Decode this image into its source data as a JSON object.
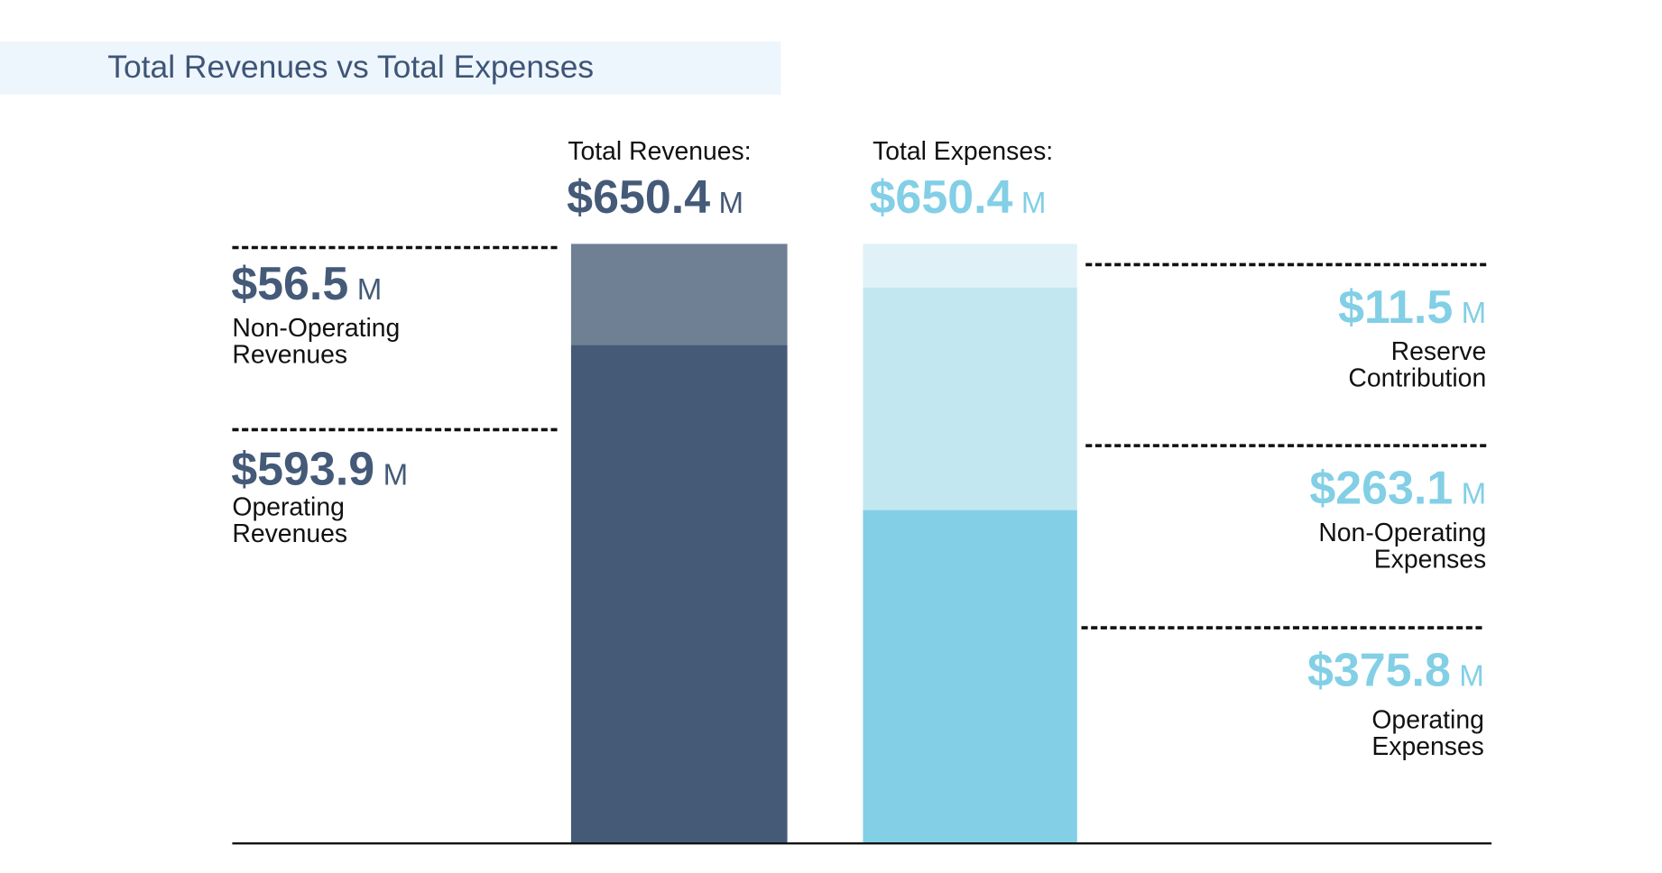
{
  "title": "Total Revenues vs Total Expenses",
  "chart_data": {
    "type": "bar",
    "stacked": true,
    "categories": [
      "Total Revenues",
      "Total Expenses"
    ],
    "unit": "M",
    "colors": {
      "operating_revenues": "#455a77",
      "non_operating_revenues": "#6f8095",
      "operating_expenses": "#83cfe6",
      "non_operating_expenses": "#c2e7f1",
      "reserve_contribution": "#e0f2f8",
      "revenue_text": "#445a78",
      "expense_text": "#82cfe6"
    },
    "totals": [
      {
        "label": "Total Revenues:",
        "value": "$650.4",
        "unit": "M"
      },
      {
        "label": "Total Expenses:",
        "value": "$650.4",
        "unit": "M"
      }
    ],
    "revenues": [
      {
        "name": "Non-Operating Revenues",
        "line1": "Non-Operating",
        "line2": "Revenues",
        "value": 56.5,
        "display": "$56.5",
        "unit": "M"
      },
      {
        "name": "Operating Revenues",
        "line1": "Operating",
        "line2": "Revenues",
        "value": 593.9,
        "display": "$593.9",
        "unit": "M"
      }
    ],
    "expenses": [
      {
        "name": "Reserve Contribution",
        "line1": "Reserve",
        "line2": "Contribution",
        "value": 11.5,
        "display": "$11.5",
        "unit": "M"
      },
      {
        "name": "Non-Operating Expenses",
        "line1": "Non-Operating",
        "line2": "Expenses",
        "value": 263.1,
        "display": "$263.1",
        "unit": "M"
      },
      {
        "name": "Operating Expenses",
        "line1": "Operating",
        "line2": "Expenses",
        "value": 375.8,
        "display": "$375.8",
        "unit": "M"
      }
    ]
  }
}
